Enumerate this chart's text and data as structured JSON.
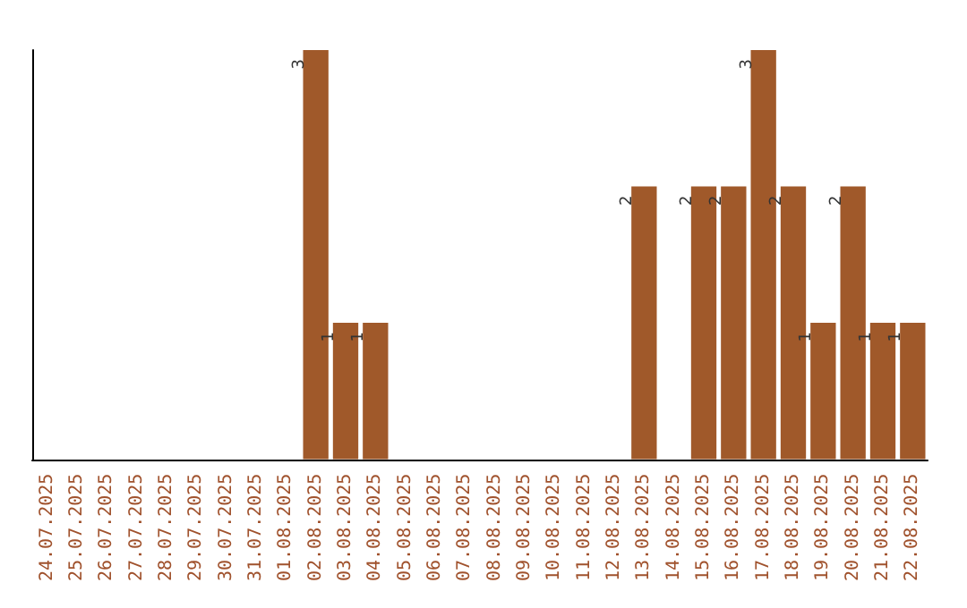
{
  "chart_data": {
    "type": "bar",
    "categories": [
      "24.07.2025",
      "25.07.2025",
      "26.07.2025",
      "27.07.2025",
      "28.07.2025",
      "29.07.2025",
      "30.07.2025",
      "31.07.2025",
      "01.08.2025",
      "02.08.2025",
      "03.08.2025",
      "04.08.2025",
      "05.08.2025",
      "06.08.2025",
      "07.08.2025",
      "08.08.2025",
      "09.08.2025",
      "10.08.2025",
      "11.08.2025",
      "12.08.2025",
      "13.08.2025",
      "14.08.2025",
      "15.08.2025",
      "16.08.2025",
      "17.08.2025",
      "18.08.2025",
      "19.08.2025",
      "20.08.2025",
      "21.08.2025",
      "22.08.2025"
    ],
    "values": [
      0,
      0,
      0,
      0,
      0,
      0,
      0,
      0,
      0,
      3,
      1,
      1,
      0,
      0,
      0,
      0,
      0,
      0,
      0,
      0,
      2,
      0,
      2,
      2,
      3,
      2,
      1,
      2,
      1,
      1
    ],
    "value_labels": [
      null,
      null,
      null,
      null,
      null,
      null,
      null,
      null,
      null,
      "3",
      "1",
      "1",
      null,
      null,
      null,
      null,
      null,
      null,
      null,
      null,
      "2",
      null,
      "2",
      "2",
      "3",
      "2",
      "1",
      "2",
      "1",
      "1"
    ],
    "color": "#a0592a",
    "grid": false,
    "tick_labels": "x"
  }
}
